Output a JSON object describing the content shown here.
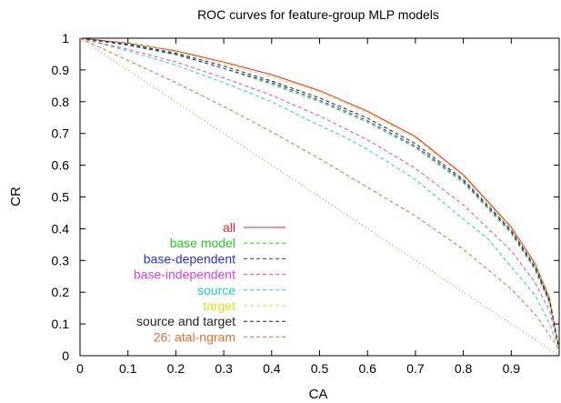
{
  "chart_data": {
    "type": "line",
    "title": "ROC curves for feature-group MLP models",
    "xlabel": "CA",
    "ylabel": "CR",
    "xlim": [
      0,
      1
    ],
    "ylim": [
      0,
      1
    ],
    "x_ticks": [
      "0",
      "0.1",
      "0.2",
      "0.3",
      "0.4",
      "0.5",
      "0.6",
      "0.7",
      "0.8",
      "0.9"
    ],
    "y_ticks": [
      "0",
      "0.1",
      "0.2",
      "0.3",
      "0.4",
      "0.5",
      "0.6",
      "0.7",
      "0.8",
      "0.9",
      "1"
    ],
    "grid": false,
    "legend_position": "bottom-left",
    "series": [
      {
        "name": "all",
        "color": "#e8262a",
        "dash": "solid",
        "points": [
          [
            0,
            1
          ],
          [
            0.1,
            0.985
          ],
          [
            0.2,
            0.96
          ],
          [
            0.3,
            0.925
          ],
          [
            0.4,
            0.885
          ],
          [
            0.5,
            0.835
          ],
          [
            0.6,
            0.77
          ],
          [
            0.7,
            0.69
          ],
          [
            0.8,
            0.57
          ],
          [
            0.9,
            0.405
          ],
          [
            0.95,
            0.29
          ],
          [
            0.98,
            0.18
          ],
          [
            1.0,
            0.02
          ]
        ]
      },
      {
        "name": "base model",
        "color": "#22cc22",
        "dash": "dashed",
        "points": [
          [
            0,
            1
          ],
          [
            0.1,
            0.98
          ],
          [
            0.2,
            0.95
          ],
          [
            0.3,
            0.905
          ],
          [
            0.4,
            0.855
          ],
          [
            0.5,
            0.8
          ],
          [
            0.6,
            0.735
          ],
          [
            0.7,
            0.655
          ],
          [
            0.8,
            0.545
          ],
          [
            0.9,
            0.385
          ],
          [
            0.95,
            0.27
          ],
          [
            0.98,
            0.165
          ],
          [
            1.0,
            0.02
          ]
        ]
      },
      {
        "name": "base-dependent",
        "color": "#2233dd",
        "dash": "dashed",
        "points": [
          [
            0,
            1
          ],
          [
            0.1,
            0.978
          ],
          [
            0.2,
            0.948
          ],
          [
            0.3,
            0.905
          ],
          [
            0.4,
            0.86
          ],
          [
            0.5,
            0.805
          ],
          [
            0.6,
            0.74
          ],
          [
            0.7,
            0.66
          ],
          [
            0.8,
            0.55
          ],
          [
            0.9,
            0.39
          ],
          [
            0.95,
            0.275
          ],
          [
            0.98,
            0.17
          ],
          [
            1.0,
            0.02
          ]
        ]
      },
      {
        "name": "base-independent",
        "color": "#e040e0",
        "dash": "dashed",
        "points": [
          [
            0,
            1
          ],
          [
            0.1,
            0.965
          ],
          [
            0.2,
            0.925
          ],
          [
            0.3,
            0.875
          ],
          [
            0.4,
            0.82
          ],
          [
            0.5,
            0.755
          ],
          [
            0.6,
            0.68
          ],
          [
            0.7,
            0.59
          ],
          [
            0.8,
            0.475
          ],
          [
            0.9,
            0.33
          ],
          [
            0.95,
            0.23
          ],
          [
            0.98,
            0.14
          ],
          [
            1.0,
            0.02
          ]
        ]
      },
      {
        "name": "source",
        "color": "#22cccc",
        "dash": "dashed",
        "points": [
          [
            0,
            1
          ],
          [
            0.1,
            0.96
          ],
          [
            0.2,
            0.915
          ],
          [
            0.3,
            0.86
          ],
          [
            0.4,
            0.8
          ],
          [
            0.5,
            0.725
          ],
          [
            0.55,
            0.69
          ],
          [
            0.6,
            0.65
          ],
          [
            0.7,
            0.555
          ],
          [
            0.8,
            0.43
          ],
          [
            0.85,
            0.37
          ],
          [
            0.9,
            0.28
          ],
          [
            0.95,
            0.19
          ],
          [
            0.98,
            0.1
          ],
          [
            1.0,
            0.02
          ]
        ]
      },
      {
        "name": "target",
        "color": "#dddd22",
        "dash": "dashed",
        "points": [
          [
            0,
            1
          ],
          [
            0.1,
            0.985
          ],
          [
            0.2,
            0.958
          ],
          [
            0.3,
            0.92
          ],
          [
            0.4,
            0.878
          ],
          [
            0.5,
            0.83
          ],
          [
            0.6,
            0.765
          ],
          [
            0.7,
            0.685
          ],
          [
            0.8,
            0.565
          ],
          [
            0.9,
            0.4
          ],
          [
            0.95,
            0.285
          ],
          [
            0.98,
            0.175
          ],
          [
            1.0,
            0.02
          ]
        ]
      },
      {
        "name": "source and target",
        "color": "#222222",
        "dash": "dashed",
        "points": [
          [
            0,
            1
          ],
          [
            0.1,
            0.982
          ],
          [
            0.2,
            0.953
          ],
          [
            0.3,
            0.912
          ],
          [
            0.4,
            0.865
          ],
          [
            0.5,
            0.812
          ],
          [
            0.6,
            0.748
          ],
          [
            0.7,
            0.668
          ],
          [
            0.8,
            0.555
          ],
          [
            0.9,
            0.395
          ],
          [
            0.95,
            0.28
          ],
          [
            0.98,
            0.172
          ],
          [
            1.0,
            0.02
          ]
        ]
      },
      {
        "name": "26: atal-ngram",
        "color": "#e07030",
        "dash": "dashed",
        "points": [
          [
            0,
            1
          ],
          [
            0.1,
            0.93
          ],
          [
            0.2,
            0.86
          ],
          [
            0.3,
            0.785
          ],
          [
            0.4,
            0.705
          ],
          [
            0.5,
            0.62
          ],
          [
            0.6,
            0.53
          ],
          [
            0.7,
            0.44
          ],
          [
            0.8,
            0.335
          ],
          [
            0.9,
            0.21
          ],
          [
            0.95,
            0.13
          ],
          [
            1.0,
            0.02
          ]
        ]
      },
      {
        "name": "",
        "color": "#e07030",
        "dash": "dotted",
        "points": [
          [
            0,
            1
          ],
          [
            1,
            0
          ]
        ]
      }
    ]
  }
}
